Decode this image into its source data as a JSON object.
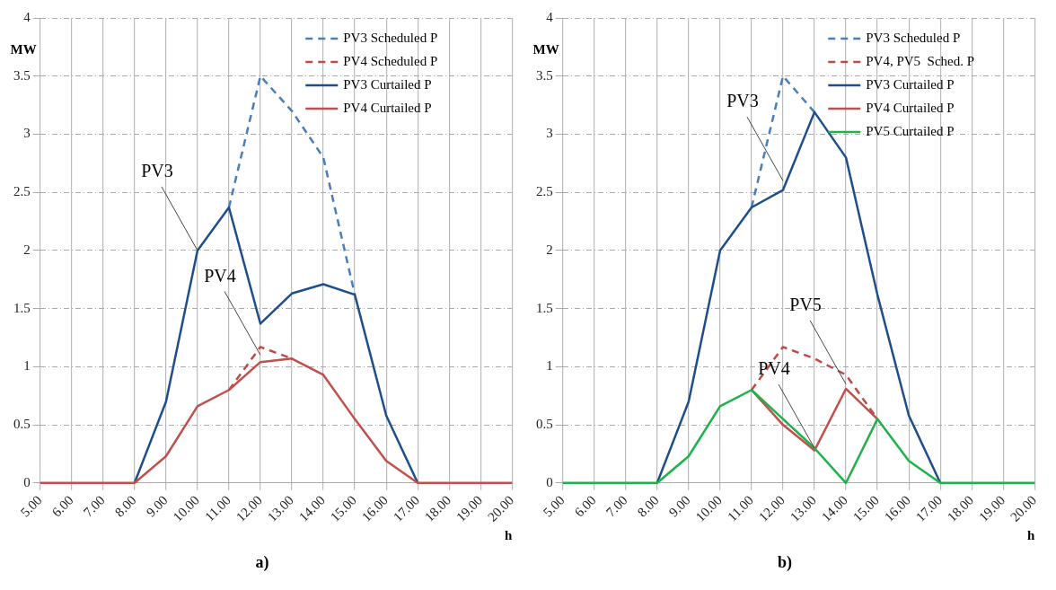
{
  "chart_data": [
    {
      "type": "line",
      "title": "a)",
      "xlabel": "h",
      "ylabel": "MW",
      "marker": "none",
      "grid": true,
      "legend": "top right",
      "ylim": [
        0,
        4
      ],
      "yticks": [
        0,
        0.5,
        1,
        1.5,
        2,
        2.5,
        3,
        3.5,
        4
      ],
      "categories": [
        "5.00",
        "6.00",
        "7.00",
        "8.00",
        "9.00",
        "10.00",
        "11.00",
        "12.00",
        "13.00",
        "14.00",
        "15.00",
        "16.00",
        "17.00",
        "18.00",
        "19.00",
        "20.00"
      ],
      "series": [
        {
          "name": "PV3 Scheduled P",
          "color": "#4a7ebb",
          "line_style": "dashed",
          "values": [
            null,
            null,
            null,
            null,
            null,
            null,
            2.37,
            3.5,
            3.2,
            2.8,
            1.62,
            null,
            null,
            null,
            null,
            null
          ]
        },
        {
          "name": "PV4 Scheduled P",
          "color": "#be4b48",
          "line_style": "dashed",
          "values": [
            null,
            null,
            null,
            null,
            null,
            null,
            0.8,
            1.17,
            1.07,
            null,
            null,
            null,
            null,
            null,
            null,
            null
          ]
        },
        {
          "name": "PV3 Curtailed P",
          "color": "#1f4e8c",
          "line_style": "solid",
          "values": [
            null,
            null,
            null,
            0,
            0.7,
            2.0,
            2.37,
            1.37,
            1.63,
            1.71,
            1.62,
            0.58,
            0,
            null,
            null,
            null
          ]
        },
        {
          "name": "PV4 Curtailed P",
          "color": "#c0504d",
          "line_style": "solid",
          "values": [
            0,
            0,
            0,
            0,
            0.23,
            0.66,
            0.8,
            1.04,
            1.07,
            0.93,
            0.55,
            0.19,
            0,
            0,
            0,
            0
          ]
        }
      ],
      "annotations": [
        {
          "text": "PV3",
          "x": "10.00",
          "y": 2.0
        },
        {
          "text": "PV4",
          "x": "12.00",
          "y": 1.1
        }
      ]
    },
    {
      "type": "line",
      "title": "b)",
      "xlabel": "h",
      "ylabel": "MW",
      "marker": "none",
      "grid": true,
      "legend": "top right",
      "ylim": [
        0,
        4
      ],
      "yticks": [
        0,
        0.5,
        1,
        1.5,
        2,
        2.5,
        3,
        3.5,
        4
      ],
      "categories": [
        "5.00",
        "6.00",
        "7.00",
        "8.00",
        "9.00",
        "10.00",
        "11.00",
        "12.00",
        "13.00",
        "14.00",
        "15.00",
        "16.00",
        "17.00",
        "18.00",
        "19.00",
        "20.00"
      ],
      "series": [
        {
          "name": "PV3 Scheduled P",
          "color": "#4a7ebb",
          "line_style": "dashed",
          "values": [
            null,
            null,
            null,
            null,
            null,
            null,
            2.37,
            3.5,
            3.19,
            null,
            null,
            null,
            null,
            null,
            null,
            null
          ]
        },
        {
          "name": "PV4, PV5  Sched. P",
          "color": "#be4b48",
          "line_style": "dashed",
          "values": [
            null,
            null,
            null,
            null,
            null,
            null,
            0.8,
            1.17,
            1.07,
            0.93,
            0.55,
            null,
            null,
            null,
            null,
            null
          ]
        },
        {
          "name": "PV3 Curtailed P",
          "color": "#1f4e8c",
          "line_style": "solid",
          "values": [
            null,
            null,
            null,
            0,
            0.7,
            2.0,
            2.37,
            2.52,
            3.19,
            2.8,
            1.62,
            0.58,
            0,
            null,
            null,
            null
          ]
        },
        {
          "name": "PV4 Curtailed P",
          "color": "#c0504d",
          "line_style": "solid",
          "values": [
            null,
            null,
            null,
            null,
            null,
            null,
            0.8,
            0.5,
            0.28,
            0.81,
            0.55,
            null,
            null,
            null,
            null,
            null
          ]
        },
        {
          "name": "PV5 Curtailed P",
          "color": "#1fb14b",
          "line_style": "solid",
          "values": [
            0,
            0,
            0,
            0,
            0.23,
            0.66,
            0.8,
            0.55,
            0.3,
            0,
            0.55,
            0.19,
            0,
            0,
            0,
            0
          ]
        }
      ],
      "annotations": [
        {
          "text": "PV3",
          "x": "12.00",
          "y": 2.6
        },
        {
          "text": "PV4",
          "x": "13.00",
          "y": 0.3
        },
        {
          "text": "PV5",
          "x": "14.00",
          "y": 0.85
        }
      ]
    }
  ]
}
